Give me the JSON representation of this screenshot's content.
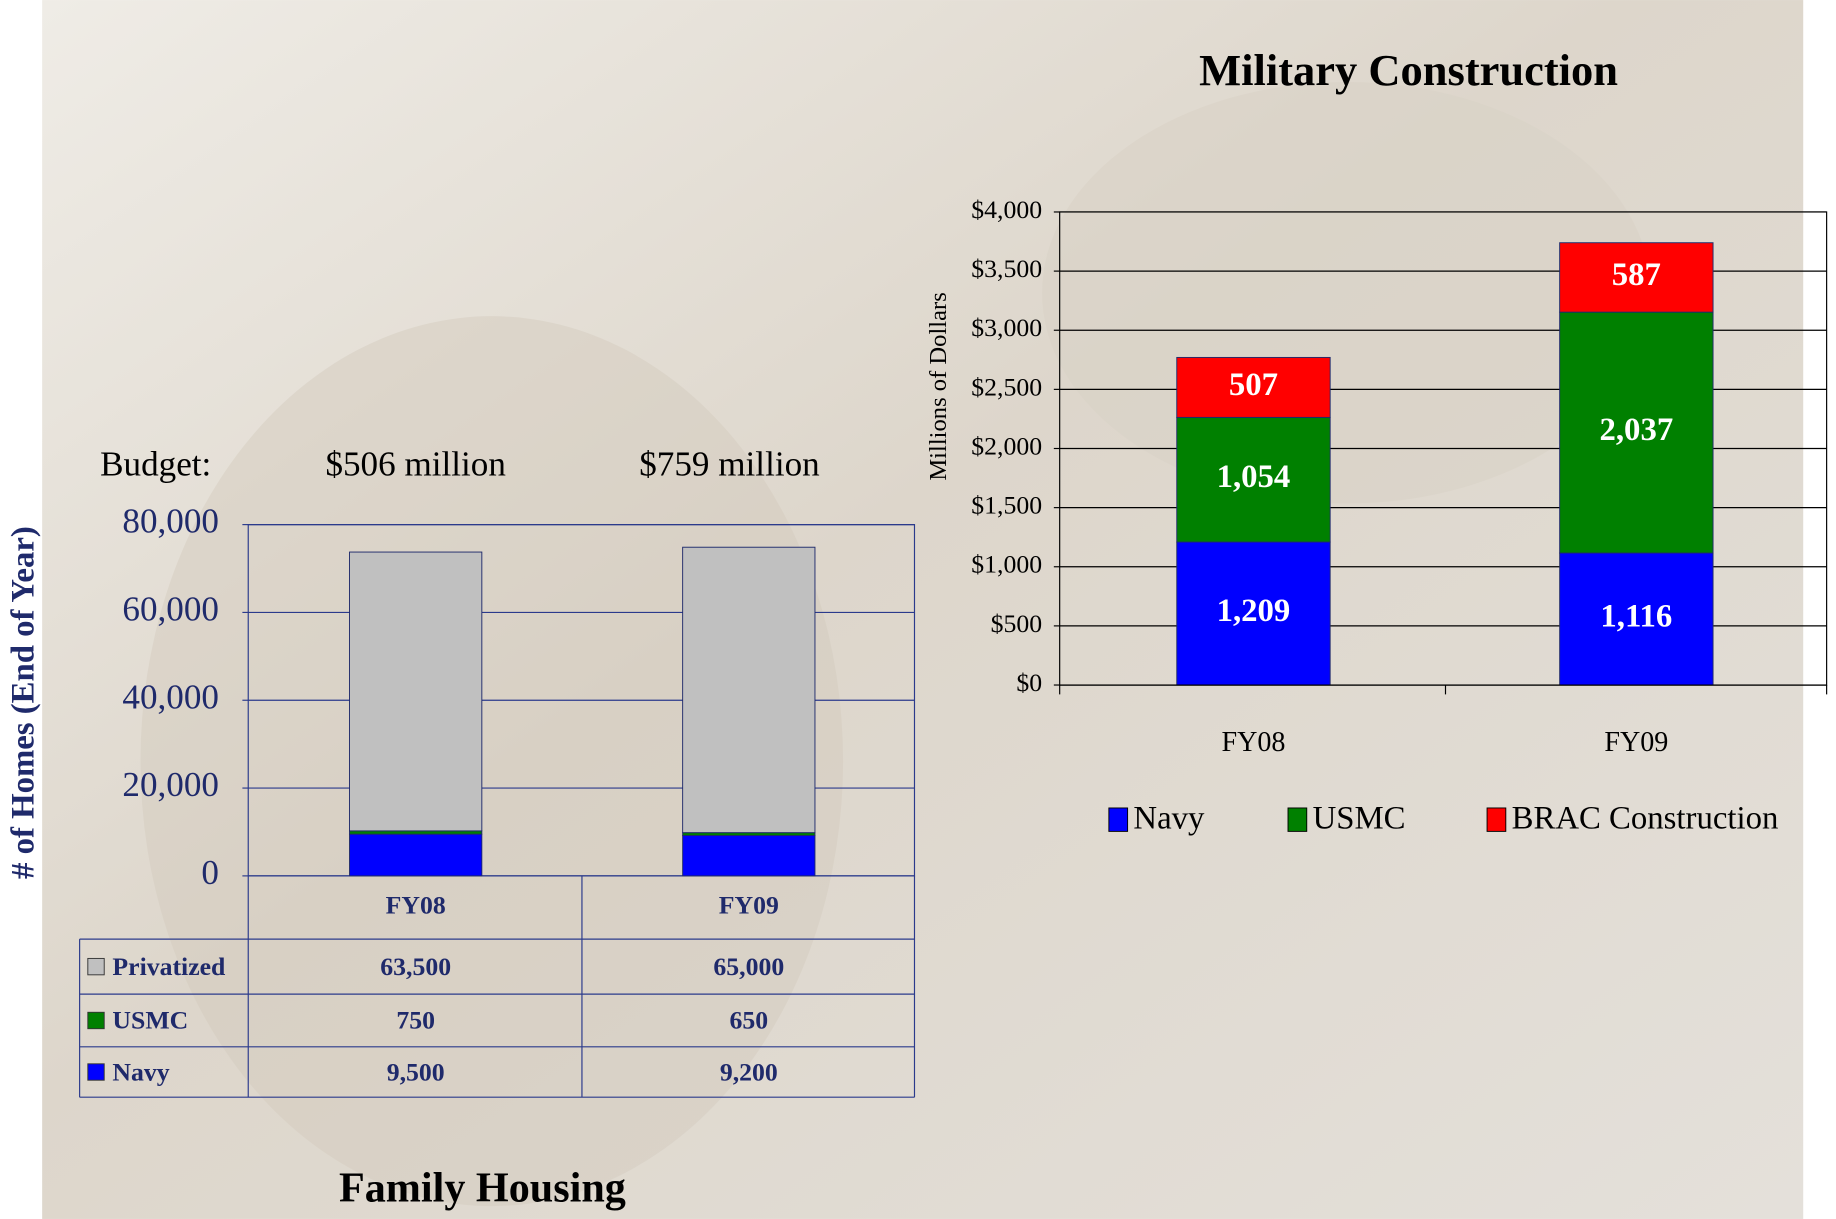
{
  "chart_data": [
    {
      "type": "bar",
      "stacked": true,
      "title": "Family Housing",
      "y_axis_title": "# of Homes (End of Year)",
      "annotations": [
        "Budget:",
        "$506 million",
        "$759 million"
      ],
      "categories": [
        "FY08",
        "FY09"
      ],
      "series": [
        {
          "name": "Navy",
          "color": "#0000ff",
          "values": [
            9500,
            9200
          ],
          "value_labels": [
            "9,500",
            "9,200"
          ]
        },
        {
          "name": "USMC",
          "color": "#008000",
          "values": [
            750,
            650
          ],
          "value_labels": [
            "750",
            "650"
          ]
        },
        {
          "name": "Privatized",
          "color": "#c0c0c0",
          "values": [
            63500,
            65000
          ],
          "value_labels": [
            "63,500",
            "65,000"
          ]
        }
      ],
      "ylim": [
        0,
        80000
      ],
      "yticks": [
        0,
        {
          "value": 20000,
          "label": "20,000"
        },
        {
          "value": 40000,
          "label": "40,000"
        },
        {
          "value": 60000,
          "label": "60,000"
        },
        {
          "value": 80000,
          "label": "80,000"
        }
      ],
      "grid": true,
      "data_table": true
    },
    {
      "type": "bar",
      "stacked": true,
      "title": "Military Construction",
      "y_axis_title": "Millions of Dollars",
      "categories": [
        "FY08",
        "FY09"
      ],
      "series": [
        {
          "name": "Navy",
          "color": "#0000ff",
          "values": [
            1209,
            1116
          ],
          "value_labels": [
            "1,209",
            "1,116"
          ]
        },
        {
          "name": "USMC",
          "color": "#008000",
          "values": [
            1054,
            2037
          ],
          "value_labels": [
            "1,054",
            "2,037"
          ]
        },
        {
          "name": "BRAC Construction",
          "color": "#ff0000",
          "values": [
            507,
            587
          ],
          "value_labels": [
            "507",
            "587"
          ]
        }
      ],
      "ylim": [
        0,
        4000
      ],
      "yticks": [
        {
          "value": 0,
          "label": "$0"
        },
        {
          "value": 500,
          "label": "$500"
        },
        {
          "value": 1000,
          "label": "$1,000"
        },
        {
          "value": 1500,
          "label": "$1,500"
        },
        {
          "value": 2000,
          "label": "$2,000"
        },
        {
          "value": 2500,
          "label": "$2,500"
        },
        {
          "value": 3000,
          "label": "$3,000"
        },
        {
          "value": 3500,
          "label": "$3,500"
        },
        {
          "value": 4000,
          "label": "$4,000"
        }
      ],
      "grid": true,
      "legend": "bottom",
      "data_table": false
    }
  ]
}
